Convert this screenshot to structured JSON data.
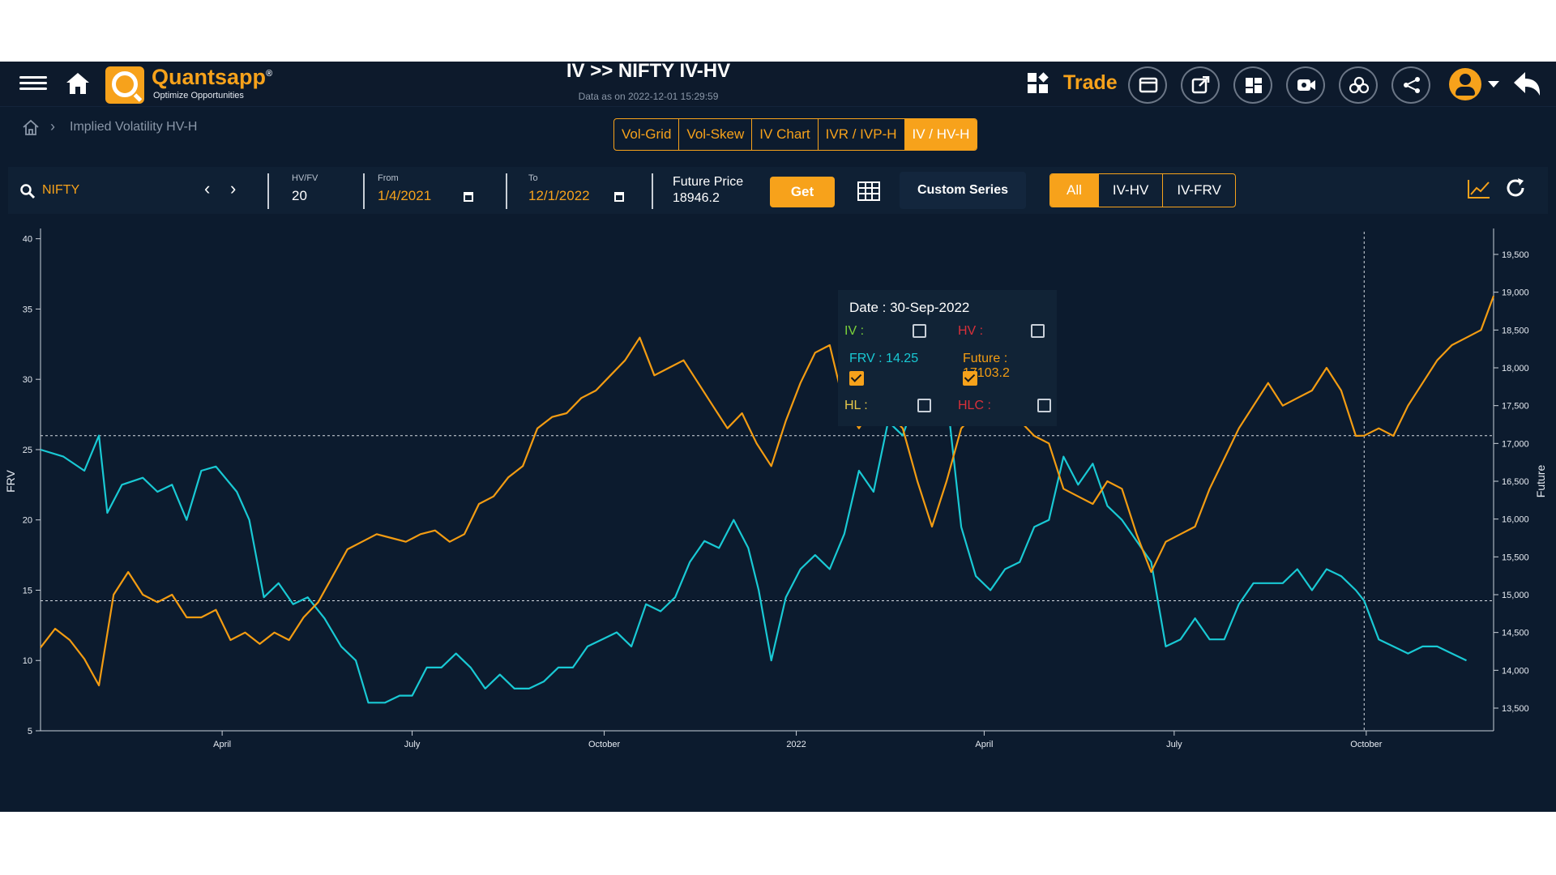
{
  "header": {
    "brand_name": "Quantsapp",
    "brand_registered": "®",
    "brand_tagline": "Optimize Opportunities",
    "title": "IV >> NIFTY IV-HV",
    "data_as_of": "Data as on 2022-12-01 15:29:59",
    "trade_label": "Trade",
    "icons": [
      "menu-icon",
      "home-icon",
      "apps-grid-icon",
      "window-icon",
      "external-link-icon",
      "dashboard-icon",
      "video-icon",
      "basket-icon",
      "share-icon",
      "user-icon",
      "back-arrow-icon"
    ]
  },
  "breadcrumb": {
    "current": "Implied Volatility HV-H"
  },
  "tabs": [
    {
      "label": "Vol-Grid",
      "active": false
    },
    {
      "label": "Vol-Skew",
      "active": false
    },
    {
      "label": "IV Chart",
      "active": false
    },
    {
      "label": "IVR / IVP-H",
      "active": false
    },
    {
      "label": "IV / HV-H",
      "active": true
    }
  ],
  "controls": {
    "symbol": "NIFTY",
    "hvfv_label": "HV/FV",
    "hvfv_value": "20",
    "from_label": "From",
    "from_value": "1/4/2021",
    "to_label": "To",
    "to_value": "12/1/2022",
    "future_price_label": "Future Price",
    "future_price_value": "18946.2",
    "get_label": "Get",
    "custom_series_label": "Custom Series",
    "series_toggle": [
      {
        "label": "All",
        "active": true
      },
      {
        "label": "IV-HV",
        "active": false
      },
      {
        "label": "IV-FRV",
        "active": false
      }
    ]
  },
  "tooltip": {
    "date": "Date : 30-Sep-2022",
    "iv_label": "IV :",
    "hv_label": "HV :",
    "frv_label": "FRV : 14.25",
    "future_label": "Future : 17103.2",
    "hl_label": "HL :",
    "hlc_label": "HLC :",
    "checked": {
      "iv": false,
      "hv": false,
      "frv": true,
      "future": true,
      "hl": false,
      "hlc": false
    }
  },
  "colors": {
    "accent": "#f7a21b",
    "frv": "#19c9d4",
    "future": "#f39c12",
    "bg": "#0c1b2e",
    "iv_label": "#7bd23a",
    "hv_label": "#d9303a"
  },
  "chart_data": {
    "type": "line",
    "y_left_label": "FRV",
    "y_right_label": "Future",
    "y_left_ticks": [
      "5",
      "10",
      "15",
      "20",
      "25",
      "30",
      "35",
      "40"
    ],
    "y_right_ticks": [
      "13,500",
      "14,000",
      "14,500",
      "15,000",
      "15,500",
      "16,000",
      "16,500",
      "17,000",
      "17,500",
      "18,000",
      "18,500",
      "19,000",
      "19,500"
    ],
    "y_left_range": [
      5,
      40.5
    ],
    "y_right_range": [
      13200,
      19800
    ],
    "x_range": [
      "2021-01-04",
      "2022-12-01"
    ],
    "x_tick_labels": [
      {
        "date": "2021-04-01",
        "label": "April"
      },
      {
        "date": "2021-07-01",
        "label": "July"
      },
      {
        "date": "2021-10-01",
        "label": "October"
      },
      {
        "date": "2022-01-01",
        "label": "2022"
      },
      {
        "date": "2022-04-01",
        "label": "April"
      },
      {
        "date": "2022-07-01",
        "label": "July"
      },
      {
        "date": "2022-10-01",
        "label": "October"
      }
    ],
    "crosshair": {
      "date": "2022-09-30",
      "frv": 14.25,
      "future": 17103.2
    },
    "series": [
      {
        "name": "FRV",
        "axis": "left",
        "points": [
          [
            "2021-01-04",
            25.0
          ],
          [
            "2021-01-15",
            24.5
          ],
          [
            "2021-01-25",
            23.5
          ],
          [
            "2021-02-01",
            26.0
          ],
          [
            "2021-02-05",
            20.5
          ],
          [
            "2021-02-12",
            22.5
          ],
          [
            "2021-02-22",
            23.0
          ],
          [
            "2021-03-01",
            22.0
          ],
          [
            "2021-03-08",
            22.5
          ],
          [
            "2021-03-15",
            20.0
          ],
          [
            "2021-03-22",
            23.5
          ],
          [
            "2021-03-29",
            23.8
          ],
          [
            "2021-04-08",
            22.0
          ],
          [
            "2021-04-14",
            20.0
          ],
          [
            "2021-04-21",
            14.5
          ],
          [
            "2021-04-28",
            15.5
          ],
          [
            "2021-05-05",
            14.0
          ],
          [
            "2021-05-12",
            14.5
          ],
          [
            "2021-05-20",
            13.0
          ],
          [
            "2021-05-28",
            11.0
          ],
          [
            "2021-06-04",
            10.0
          ],
          [
            "2021-06-10",
            7.0
          ],
          [
            "2021-06-18",
            7.0
          ],
          [
            "2021-06-25",
            7.5
          ],
          [
            "2021-07-01",
            7.5
          ],
          [
            "2021-07-08",
            9.5
          ],
          [
            "2021-07-15",
            9.5
          ],
          [
            "2021-07-22",
            10.5
          ],
          [
            "2021-07-29",
            9.5
          ],
          [
            "2021-08-05",
            8.0
          ],
          [
            "2021-08-12",
            9.0
          ],
          [
            "2021-08-19",
            8.0
          ],
          [
            "2021-08-26",
            8.0
          ],
          [
            "2021-09-02",
            8.5
          ],
          [
            "2021-09-09",
            9.5
          ],
          [
            "2021-09-16",
            9.5
          ],
          [
            "2021-09-23",
            11.0
          ],
          [
            "2021-09-30",
            11.5
          ],
          [
            "2021-10-07",
            12.0
          ],
          [
            "2021-10-14",
            11.0
          ],
          [
            "2021-10-21",
            14.0
          ],
          [
            "2021-10-28",
            13.5
          ],
          [
            "2021-11-04",
            14.5
          ],
          [
            "2021-11-11",
            17.0
          ],
          [
            "2021-11-18",
            18.5
          ],
          [
            "2021-11-25",
            18.0
          ],
          [
            "2021-12-02",
            20.0
          ],
          [
            "2021-12-09",
            18.0
          ],
          [
            "2021-12-14",
            15.0
          ],
          [
            "2021-12-20",
            10.0
          ],
          [
            "2021-12-27",
            14.5
          ],
          [
            "2022-01-03",
            16.5
          ],
          [
            "2022-01-10",
            17.5
          ],
          [
            "2022-01-17",
            16.5
          ],
          [
            "2022-01-24",
            19.0
          ],
          [
            "2022-01-31",
            23.5
          ],
          [
            "2022-02-07",
            22.0
          ],
          [
            "2022-02-14",
            27.0
          ],
          [
            "2022-02-21",
            26.0
          ],
          [
            "2022-02-28",
            29.0
          ],
          [
            "2022-03-07",
            27.0
          ],
          [
            "2022-03-14",
            29.0
          ],
          [
            "2022-03-21",
            19.5
          ],
          [
            "2022-03-28",
            16.0
          ],
          [
            "2022-04-04",
            15.0
          ],
          [
            "2022-04-11",
            16.5
          ],
          [
            "2022-04-18",
            17.0
          ],
          [
            "2022-04-25",
            19.5
          ],
          [
            "2022-05-02",
            20.0
          ],
          [
            "2022-05-09",
            24.5
          ],
          [
            "2022-05-16",
            22.5
          ],
          [
            "2022-05-23",
            24.0
          ],
          [
            "2022-05-30",
            21.0
          ],
          [
            "2022-06-06",
            20.0
          ],
          [
            "2022-06-13",
            18.5
          ],
          [
            "2022-06-20",
            17.0
          ],
          [
            "2022-06-27",
            11.0
          ],
          [
            "2022-07-04",
            11.5
          ],
          [
            "2022-07-11",
            13.0
          ],
          [
            "2022-07-18",
            11.5
          ],
          [
            "2022-07-25",
            11.5
          ],
          [
            "2022-08-01",
            14.0
          ],
          [
            "2022-08-08",
            15.5
          ],
          [
            "2022-08-15",
            15.5
          ],
          [
            "2022-08-22",
            15.5
          ],
          [
            "2022-08-29",
            16.5
          ],
          [
            "2022-09-05",
            15.0
          ],
          [
            "2022-09-12",
            16.5
          ],
          [
            "2022-09-19",
            16.0
          ],
          [
            "2022-09-26",
            15.0
          ],
          [
            "2022-09-30",
            14.25
          ],
          [
            "2022-10-07",
            11.5
          ],
          [
            "2022-10-14",
            11.0
          ],
          [
            "2022-10-21",
            10.5
          ],
          [
            "2022-10-28",
            11.0
          ],
          [
            "2022-11-04",
            11.0
          ],
          [
            "2022-11-11",
            10.5
          ],
          [
            "2022-11-18",
            10.0
          ]
        ]
      },
      {
        "name": "Future",
        "axis": "right",
        "points": [
          [
            "2021-01-04",
            14300
          ],
          [
            "2021-01-11",
            14550
          ],
          [
            "2021-01-18",
            14400
          ],
          [
            "2021-01-25",
            14150
          ],
          [
            "2021-02-01",
            13800
          ],
          [
            "2021-02-08",
            15000
          ],
          [
            "2021-02-15",
            15300
          ],
          [
            "2021-02-22",
            15000
          ],
          [
            "2021-03-01",
            14900
          ],
          [
            "2021-03-08",
            15000
          ],
          [
            "2021-03-15",
            14700
          ],
          [
            "2021-03-22",
            14700
          ],
          [
            "2021-03-29",
            14800
          ],
          [
            "2021-04-05",
            14400
          ],
          [
            "2021-04-12",
            14500
          ],
          [
            "2021-04-19",
            14350
          ],
          [
            "2021-04-26",
            14500
          ],
          [
            "2021-05-03",
            14400
          ],
          [
            "2021-05-10",
            14700
          ],
          [
            "2021-05-17",
            14900
          ],
          [
            "2021-05-24",
            15250
          ],
          [
            "2021-05-31",
            15600
          ],
          [
            "2021-06-07",
            15700
          ],
          [
            "2021-06-14",
            15800
          ],
          [
            "2021-06-21",
            15750
          ],
          [
            "2021-06-28",
            15700
          ],
          [
            "2021-07-05",
            15800
          ],
          [
            "2021-07-12",
            15850
          ],
          [
            "2021-07-19",
            15700
          ],
          [
            "2021-07-26",
            15800
          ],
          [
            "2021-08-02",
            16200
          ],
          [
            "2021-08-09",
            16300
          ],
          [
            "2021-08-16",
            16550
          ],
          [
            "2021-08-23",
            16700
          ],
          [
            "2021-08-30",
            17200
          ],
          [
            "2021-09-06",
            17350
          ],
          [
            "2021-09-13",
            17400
          ],
          [
            "2021-09-20",
            17600
          ],
          [
            "2021-09-27",
            17700
          ],
          [
            "2021-10-04",
            17900
          ],
          [
            "2021-10-11",
            18100
          ],
          [
            "2021-10-18",
            18400
          ],
          [
            "2021-10-25",
            17900
          ],
          [
            "2021-11-01",
            18000
          ],
          [
            "2021-11-08",
            18100
          ],
          [
            "2021-11-15",
            17800
          ],
          [
            "2021-11-22",
            17500
          ],
          [
            "2021-11-29",
            17200
          ],
          [
            "2021-12-06",
            17400
          ],
          [
            "2021-12-13",
            17000
          ],
          [
            "2021-12-20",
            16700
          ],
          [
            "2021-12-27",
            17300
          ],
          [
            "2022-01-03",
            17800
          ],
          [
            "2022-01-10",
            18200
          ],
          [
            "2022-01-17",
            18300
          ],
          [
            "2022-01-24",
            17500
          ],
          [
            "2022-01-31",
            17200
          ],
          [
            "2022-02-07",
            17500
          ],
          [
            "2022-02-14",
            17400
          ],
          [
            "2022-02-21",
            17200
          ],
          [
            "2022-02-28",
            16500
          ],
          [
            "2022-03-07",
            15900
          ],
          [
            "2022-03-14",
            16500
          ],
          [
            "2022-03-21",
            17200
          ],
          [
            "2022-03-28",
            17400
          ],
          [
            "2022-04-04",
            17900
          ],
          [
            "2022-04-11",
            17600
          ],
          [
            "2022-04-18",
            17300
          ],
          [
            "2022-04-25",
            17100
          ],
          [
            "2022-05-02",
            17000
          ],
          [
            "2022-05-09",
            16400
          ],
          [
            "2022-05-16",
            16300
          ],
          [
            "2022-05-23",
            16200
          ],
          [
            "2022-05-30",
            16500
          ],
          [
            "2022-06-06",
            16400
          ],
          [
            "2022-06-13",
            15800
          ],
          [
            "2022-06-20",
            15300
          ],
          [
            "2022-06-27",
            15700
          ],
          [
            "2022-07-04",
            15800
          ],
          [
            "2022-07-11",
            15900
          ],
          [
            "2022-07-18",
            16400
          ],
          [
            "2022-07-25",
            16800
          ],
          [
            "2022-08-01",
            17200
          ],
          [
            "2022-08-08",
            17500
          ],
          [
            "2022-08-15",
            17800
          ],
          [
            "2022-08-22",
            17500
          ],
          [
            "2022-08-29",
            17600
          ],
          [
            "2022-09-05",
            17700
          ],
          [
            "2022-09-12",
            18000
          ],
          [
            "2022-09-19",
            17700
          ],
          [
            "2022-09-26",
            17100
          ],
          [
            "2022-09-30",
            17103.2
          ],
          [
            "2022-10-07",
            17200
          ],
          [
            "2022-10-14",
            17100
          ],
          [
            "2022-10-21",
            17500
          ],
          [
            "2022-10-28",
            17800
          ],
          [
            "2022-11-04",
            18100
          ],
          [
            "2022-11-11",
            18300
          ],
          [
            "2022-11-18",
            18400
          ],
          [
            "2022-11-25",
            18500
          ],
          [
            "2022-12-01",
            18950
          ]
        ]
      }
    ]
  }
}
